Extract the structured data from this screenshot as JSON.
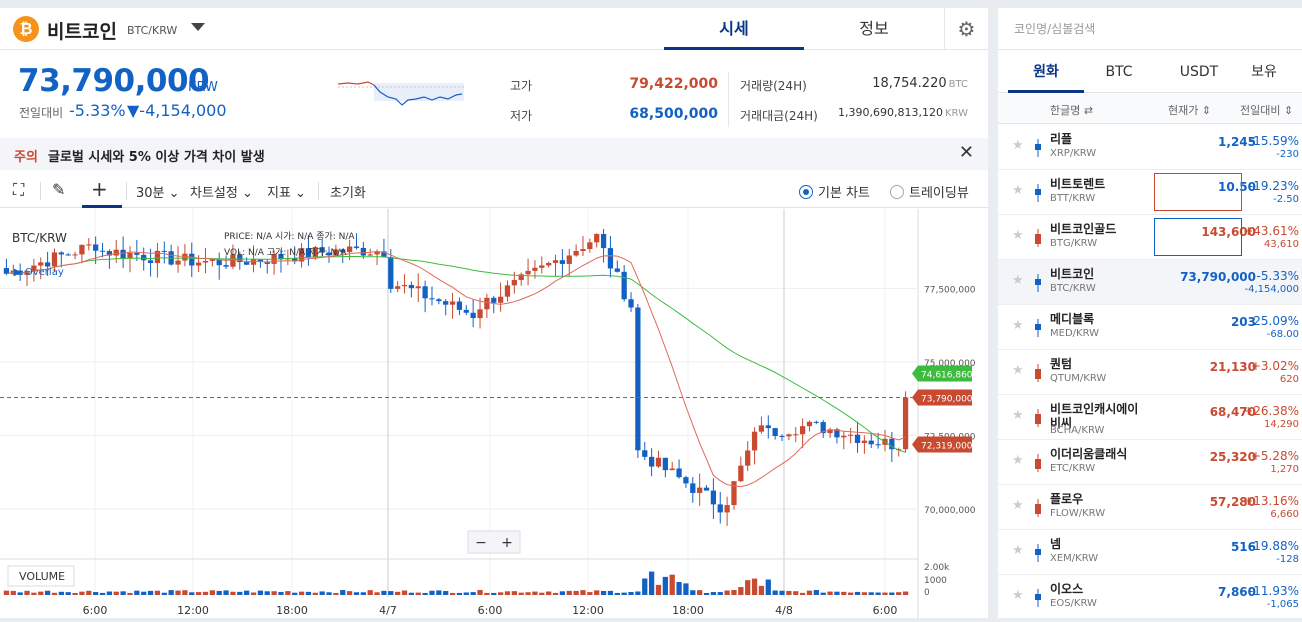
{
  "coin": {
    "logo": "₿",
    "name": "비트코인",
    "pair": "BTC/KRW"
  },
  "top_tabs": [
    "시세",
    "정보"
  ],
  "price": {
    "value": "73,790,000",
    "unit": "KRW",
    "change_label": "전일대비",
    "change_rate": "-5.33%",
    "change_amount": "▼-4,154,000"
  },
  "stats": {
    "high_label": "고가",
    "high": "79,422,000",
    "low_label": "저가",
    "low": "68,500,000",
    "volume_label": "거래량(24H)",
    "volume": "18,754.220",
    "volume_unit": "BTC",
    "amount_label": "거래대금(24H)",
    "amount": "1,390,690,813,120",
    "amount_unit": "KRW"
  },
  "notice": {
    "tag": "주의",
    "text": "글로벌 시세와 5% 이상 가격 차이 발생"
  },
  "toolbar": {
    "interval": "30분",
    "chart_settings": "차트설정",
    "indicators": "지표",
    "reset": "초기화",
    "basic_chart": "기본 차트",
    "tradingview": "트레이딩뷰"
  },
  "chart_data": {
    "type": "candlestick",
    "symbol": "BTC/KRW",
    "overlay_label": "Overlay",
    "info": {
      "price_label": "PRICE:",
      "vol_label": "VOL:",
      "open_label": "시가:",
      "high_label": "고가:",
      "low_label": "저가:",
      "close_label": "종가:",
      "na": "N/A"
    },
    "y_ticks": [
      77500000,
      75000000,
      72500000,
      70000000
    ],
    "y_tick_labels": [
      "77,500,000",
      "75,000,000",
      "72,500,000",
      "70,000,000"
    ],
    "ylim": [
      68300000,
      80200000
    ],
    "x_tick_labels": [
      "6:00",
      "12:00",
      "18:00",
      "4/7",
      "6:00",
      "12:00",
      "18:00",
      "4/8",
      "6:00"
    ],
    "ma_labels": {
      "ma_long": "74,616,860",
      "current": "73,790,000",
      "ma_short": "72,319,000"
    },
    "volume_label": "VOLUME",
    "volume_ticks": [
      "2.00k",
      "1000",
      "0"
    ],
    "zoom_minus": "−",
    "zoom_plus": "+"
  },
  "market_panel": {
    "search_placeholder": "코인명/심볼검색",
    "tabs": [
      "원화",
      "BTC",
      "USDT",
      "보유"
    ],
    "col_name": "한글명 ⇄",
    "col_price": "현재가 ⇕",
    "col_change": "전일대비 ⇕",
    "rows": [
      {
        "name": "리플",
        "symbol": "XRP/KRW",
        "price": "1,245",
        "rate": "-15.59%",
        "amount": "-230",
        "dir": "dn"
      },
      {
        "name": "비트토렌트",
        "symbol": "BTT/KRW",
        "price": "10.50",
        "rate": "-19.23%",
        "amount": "-2.50",
        "dir": "dn"
      },
      {
        "name": "비트코인골드",
        "symbol": "BTG/KRW",
        "price": "143,600",
        "rate": "+43.61%",
        "amount": "43,610",
        "dir": "up"
      },
      {
        "name": "비트코인",
        "symbol": "BTC/KRW",
        "price": "73,790,000",
        "rate": "-5.33%",
        "amount": "-4,154,000",
        "dir": "dn"
      },
      {
        "name": "메디블록",
        "symbol": "MED/KRW",
        "price": "203",
        "rate": "-25.09%",
        "amount": "-68.00",
        "dir": "dn"
      },
      {
        "name": "퀀텀",
        "symbol": "QTUM/KRW",
        "price": "21,130",
        "rate": "+3.02%",
        "amount": "620",
        "dir": "up"
      },
      {
        "name": "비트코인캐시에이비씨",
        "symbol": "BCHA/KRW",
        "price": "68,470",
        "rate": "+26.38%",
        "amount": "14,290",
        "dir": "up"
      },
      {
        "name": "이더리움클래식",
        "symbol": "ETC/KRW",
        "price": "25,320",
        "rate": "+5.28%",
        "amount": "1,270",
        "dir": "up"
      },
      {
        "name": "플로우",
        "symbol": "FLOW/KRW",
        "price": "57,280",
        "rate": "+13.16%",
        "amount": "6,660",
        "dir": "up"
      },
      {
        "name": "넴",
        "symbol": "XEM/KRW",
        "price": "516",
        "rate": "-19.88%",
        "amount": "-128",
        "dir": "dn"
      },
      {
        "name": "이오스",
        "symbol": "EOS/KRW",
        "price": "7,860",
        "rate": "-11.93%",
        "amount": "-1,065",
        "dir": "dn"
      }
    ]
  }
}
